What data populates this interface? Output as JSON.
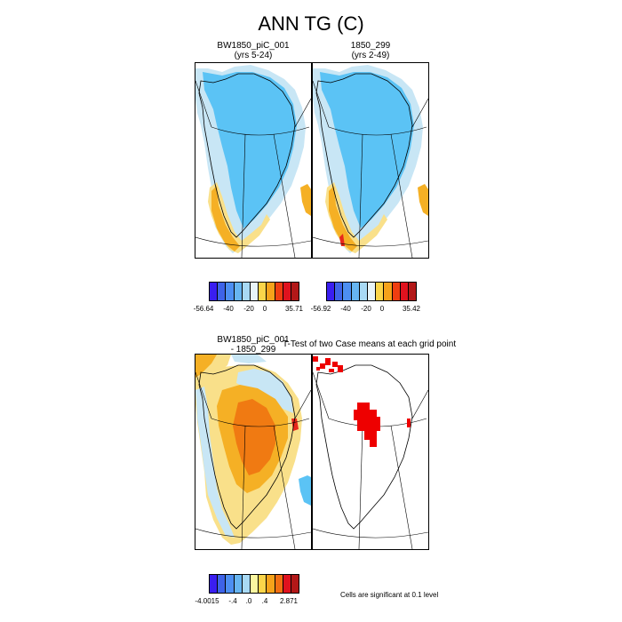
{
  "title": "ANN TG (C)",
  "panels": {
    "top_left": {
      "case": "BW1850_piC_001",
      "years": "(yrs 5-24)"
    },
    "top_right": {
      "case": "1850_299",
      "years": "(yrs 2-49)"
    },
    "bottom_left": {
      "line1": "BW1850_piC_001",
      "line2": "- 1850_299"
    },
    "bottom_right": {
      "title": "T-Test of two Case means at each grid point"
    }
  },
  "colorbars": {
    "top_left": {
      "colors": [
        "#3a1ef0",
        "#3e63e8",
        "#4d8ff2",
        "#67b5f1",
        "#a8d9f4",
        "#e8f4f8",
        "#fbd54a",
        "#f6a21a",
        "#ef3e10",
        "#e0121e",
        "#b21818"
      ],
      "labels": [
        "-56.64",
        "-40",
        "-20",
        "0",
        "35.71"
      ]
    },
    "top_right": {
      "colors": [
        "#3a1ef0",
        "#3e63e8",
        "#4d8ff2",
        "#67b5f1",
        "#a8d9f4",
        "#e8f4f8",
        "#fbd54a",
        "#f6a21a",
        "#ef3e10",
        "#e0121e",
        "#b21818"
      ],
      "labels": [
        "-56.92",
        "-40",
        "-20",
        "0",
        "35.42"
      ]
    },
    "bottom_left": {
      "colors": [
        "#3a1ef0",
        "#3e63e8",
        "#4d8ff2",
        "#67b5f1",
        "#a8d9f4",
        "#fbf7a0",
        "#fbd54a",
        "#f6a21a",
        "#f26f12",
        "#e0121e",
        "#b21818"
      ],
      "labels": [
        "-4.0015",
        "-.4",
        ".0",
        ".4",
        "2.871"
      ]
    }
  },
  "significance_note": "Cells are significant at 0.1 level",
  "map_colors": {
    "cold_blue": "#5bc3f5",
    "light_blue": "#c8e6f5",
    "yellow": "#f9e08a",
    "orange": "#f5b025",
    "dark_orange": "#f07a12",
    "red": "#e8281c",
    "sig_red": "#ee0000"
  }
}
